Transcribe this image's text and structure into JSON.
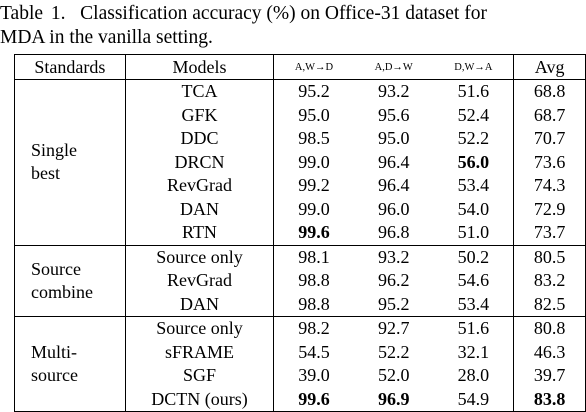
{
  "caption": {
    "label": "Table 1.",
    "line1": "Classification accuracy (%) on Office-31 dataset for",
    "line2": "MDA in the vanilla setting."
  },
  "headers": {
    "standards": "Standards",
    "models": "Models",
    "col1": "A,W→D",
    "col2": "A,D→W",
    "col3": "D,W→A",
    "avg": "Avg"
  },
  "groups": [
    {
      "standard_lines": [
        "Single",
        "best"
      ],
      "rows": [
        {
          "model": "TCA",
          "v1": "95.2",
          "v2": "93.2",
          "v3": "51.6",
          "avg": "68.8"
        },
        {
          "model": "GFK",
          "v1": "95.0",
          "v2": "95.6",
          "v3": "52.4",
          "avg": "68.7"
        },
        {
          "model": "DDC",
          "v1": "98.5",
          "v2": "95.0",
          "v3": "52.2",
          "avg": "70.7"
        },
        {
          "model": "DRCN",
          "v1": "99.0",
          "v2": "96.4",
          "v3": "56.0",
          "avg": "73.6",
          "bold": [
            "v3"
          ]
        },
        {
          "model": "RevGrad",
          "v1": "99.2",
          "v2": "96.4",
          "v3": "53.4",
          "avg": "74.3"
        },
        {
          "model": "DAN",
          "v1": "99.0",
          "v2": "96.0",
          "v3": "54.0",
          "avg": "72.9"
        },
        {
          "model": "RTN",
          "v1": "99.6",
          "v2": "96.8",
          "v3": "51.0",
          "avg": "73.7",
          "bold": [
            "v1"
          ]
        }
      ]
    },
    {
      "standard_lines": [
        "Source",
        "combine"
      ],
      "rows": [
        {
          "model": "Source only",
          "v1": "98.1",
          "v2": "93.2",
          "v3": "50.2",
          "avg": "80.5"
        },
        {
          "model": "RevGrad",
          "v1": "98.8",
          "v2": "96.2",
          "v3": "54.6",
          "avg": "83.2"
        },
        {
          "model": "DAN",
          "v1": "98.8",
          "v2": "95.2",
          "v3": "53.4",
          "avg": "82.5"
        }
      ]
    },
    {
      "standard_lines": [
        "Multi-",
        "source"
      ],
      "rows": [
        {
          "model": "Source only",
          "v1": "98.2",
          "v2": "92.7",
          "v3": "51.6",
          "avg": "80.8"
        },
        {
          "model": "sFRAME",
          "v1": "54.5",
          "v2": "52.2",
          "v3": "32.1",
          "avg": "46.3"
        },
        {
          "model": "SGF",
          "v1": "39.0",
          "v2": "52.0",
          "v3": "28.0",
          "avg": "39.7"
        },
        {
          "model": "DCTN (ours)",
          "v1": "99.6",
          "v2": "96.9",
          "v3": "54.9",
          "avg": "83.8",
          "bold": [
            "v1",
            "v2",
            "avg"
          ]
        }
      ]
    }
  ]
}
